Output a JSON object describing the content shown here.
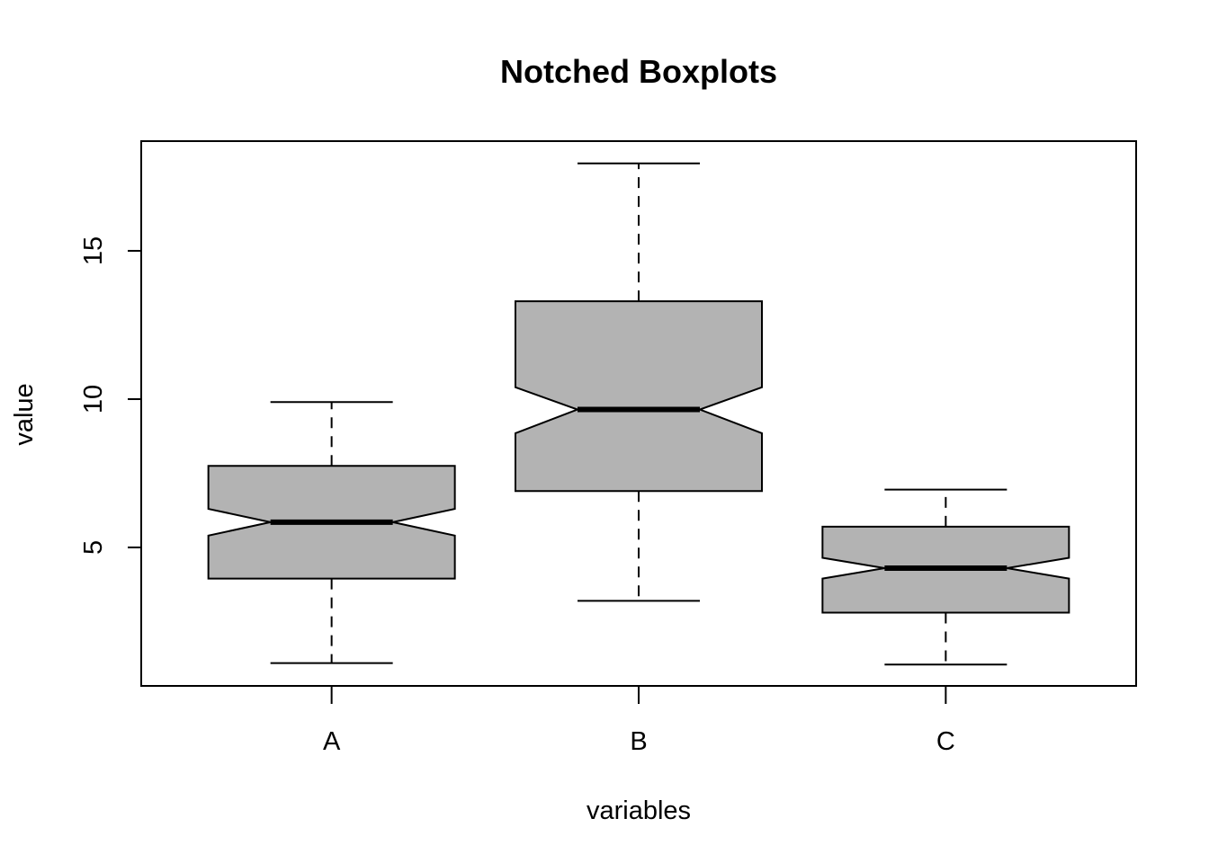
{
  "chart_data": {
    "type": "boxplot",
    "title": "Notched Boxplots",
    "xlabel": "variables",
    "ylabel": "value",
    "categories": [
      "A",
      "B",
      "C"
    ],
    "yticks": [
      5,
      10,
      15
    ],
    "ylim": [
      0.33,
      18.7
    ],
    "box_color": "#b3b3b3",
    "notched": true,
    "boxes": [
      {
        "name": "A",
        "whisker_low": 1.1,
        "q1": 3.95,
        "median": 5.85,
        "q3": 7.75,
        "whisker_high": 9.9,
        "notch_low": 5.4,
        "notch_high": 6.3
      },
      {
        "name": "B",
        "whisker_low": 3.2,
        "q1": 6.9,
        "median": 9.65,
        "q3": 13.3,
        "whisker_high": 17.95,
        "notch_low": 8.85,
        "notch_high": 10.4
      },
      {
        "name": "C",
        "whisker_low": 1.05,
        "q1": 2.8,
        "median": 4.3,
        "q3": 5.7,
        "whisker_high": 6.95,
        "notch_low": 3.95,
        "notch_high": 4.65
      }
    ]
  }
}
